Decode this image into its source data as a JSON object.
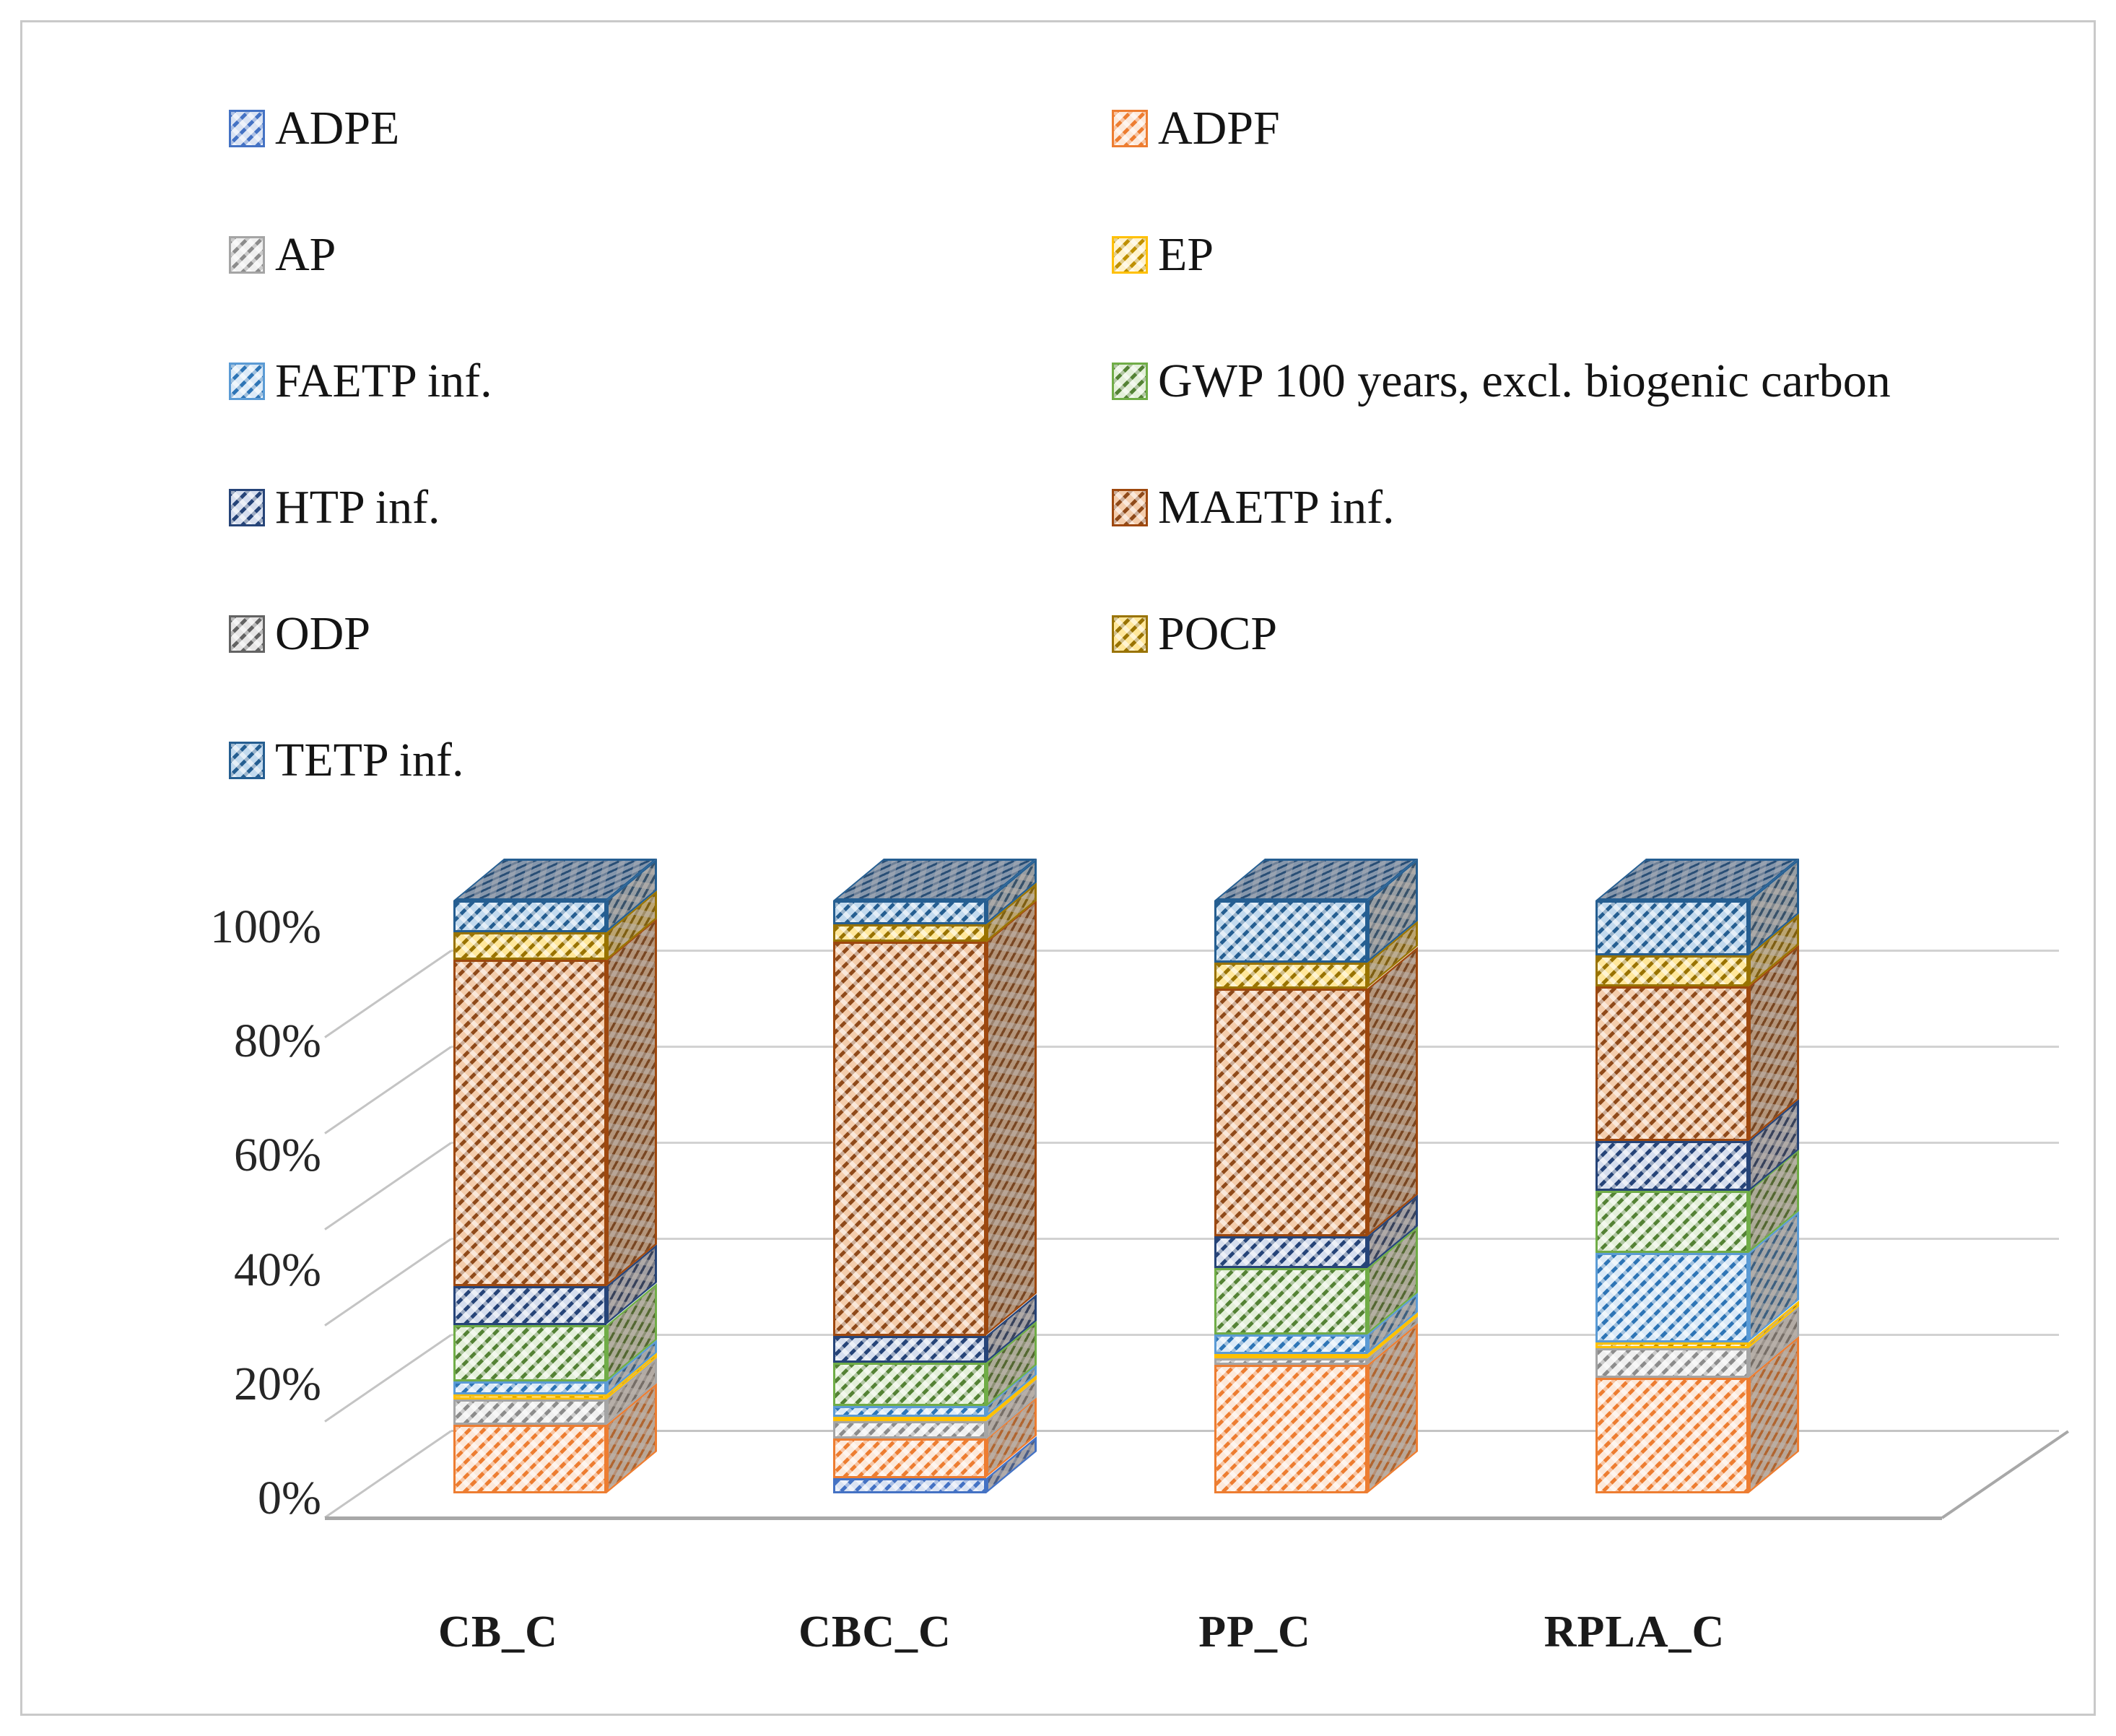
{
  "figure": {
    "kind": "3d-stacked-100pct-bar-chart"
  },
  "chart_data": {
    "type": "bar",
    "stacked": true,
    "effect": "3d",
    "unit": "%",
    "title": "",
    "xlabel": "",
    "ylabel": "",
    "ylim": [
      0,
      100
    ],
    "grid": true,
    "legend_position": "top-two-columns",
    "categories": [
      "CB_C",
      "CBC_C",
      "PP_C",
      "RPLA_C"
    ],
    "y_ticks": [
      "0%",
      "20%",
      "40%",
      "60%",
      "80%",
      "100%"
    ],
    "y_tick_values": [
      0,
      20,
      40,
      60,
      80,
      100
    ],
    "series": [
      {
        "name": "ADPE",
        "values": [
          0,
          2.6,
          0,
          0
        ],
        "color": {
          "border": "#4472C4",
          "bg": "#DAE3F3",
          "hatch": "#4472C4"
        }
      },
      {
        "name": "ADPF",
        "values": [
          11.6,
          6.6,
          21.7,
          19.5
        ],
        "color": {
          "border": "#ED7D31",
          "bg": "#FCE9DB",
          "hatch": "#ED7D31"
        }
      },
      {
        "name": "AP",
        "values": [
          4.2,
          3.0,
          1.1,
          5.0
        ],
        "color": {
          "border": "#A5A5A5",
          "bg": "#F0F0F0",
          "hatch": "#8C8C8C"
        }
      },
      {
        "name": "EP",
        "values": [
          0.9,
          0.7,
          0.7,
          1.0
        ],
        "color": {
          "border": "#FFC000",
          "bg": "#FFF2CC",
          "hatch": "#BF9000"
        }
      },
      {
        "name": "FAETP inf.",
        "values": [
          2.2,
          1.8,
          3.3,
          15.0
        ],
        "color": {
          "border": "#5B9BD5",
          "bg": "#DCEAF7",
          "hatch": "#2E75B6"
        }
      },
      {
        "name": "GWP 100 years, excl. biogenic carbon",
        "values": [
          9.5,
          7.4,
          11.2,
          10.5
        ],
        "color": {
          "border": "#70AD47",
          "bg": "#E4F0DA",
          "hatch": "#548235"
        }
      },
      {
        "name": "HTP inf.",
        "values": [
          6.5,
          4.5,
          5.4,
          8.5
        ],
        "color": {
          "border": "#264478",
          "bg": "#D6DEEE",
          "hatch": "#264478"
        }
      },
      {
        "name": "MAETP inf.",
        "values": [
          55.1,
          66.4,
          41.8,
          26.0
        ],
        "color": {
          "border": "#9E480E",
          "bg": "#F4CDAC",
          "hatch": "#8F4A1A"
        }
      },
      {
        "name": "ODP",
        "values": [
          0,
          0,
          0,
          0
        ],
        "color": {
          "border": "#636363",
          "bg": "#E7E6E6",
          "hatch": "#636363"
        }
      },
      {
        "name": "POCP",
        "values": [
          4.7,
          3.0,
          4.3,
          5.2
        ],
        "color": {
          "border": "#997300",
          "bg": "#FFE79B",
          "hatch": "#997300"
        }
      },
      {
        "name": "TETP inf.",
        "values": [
          5.3,
          4.0,
          10.5,
          9.3
        ],
        "color": {
          "border": "#255E91",
          "bg": "#C3DAEE",
          "hatch": "#255E91"
        }
      }
    ],
    "legend_columns": [
      [
        "ADPE",
        "AP",
        "FAETP inf.",
        "HTP inf.",
        "ODP",
        "TETP inf."
      ],
      [
        "ADPF",
        "EP",
        "GWP 100 years, excl. biogenic carbon",
        "MAETP inf.",
        "POCP"
      ]
    ]
  }
}
